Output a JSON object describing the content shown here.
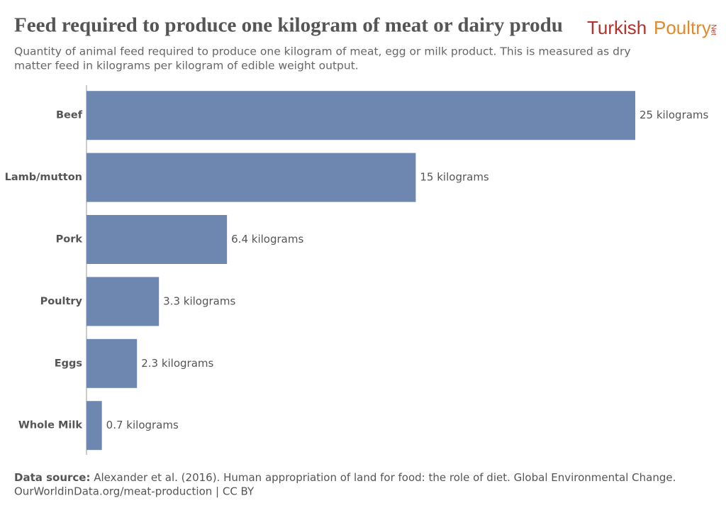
{
  "chart_data": {
    "type": "bar",
    "orientation": "horizontal",
    "title": "Feed required to produce one kilogram of meat or dairy produ",
    "subtitle": [
      "Quantity of animal feed required to produce one kilogram of meat, egg or milk product. This is measured as dry",
      "matter feed in kilograms per kilogram of edible weight output."
    ],
    "categories": [
      "Beef",
      "Lamb/mutton",
      "Pork",
      "Poultry",
      "Eggs",
      "Whole Milk"
    ],
    "values": [
      25,
      15,
      6.4,
      3.3,
      2.3,
      0.7
    ],
    "value_labels": [
      "25 kilograms",
      "15 kilograms",
      "6.4 kilograms",
      "3.3 kilograms",
      "2.3 kilograms",
      "0.7 kilograms"
    ],
    "color": "#6d87b0",
    "xlim": [
      0,
      25
    ],
    "source": {
      "label": "Data source:",
      "text": "Alexander et al. (2016). Human appropriation of land for food: the role of diet. Global Environmental Change.",
      "line2": "OurWorldinData.org/meat-production | CC BY"
    }
  },
  "logo": {
    "word1": "Turkish",
    "word2": "Poultry",
    "word3": "Net"
  }
}
